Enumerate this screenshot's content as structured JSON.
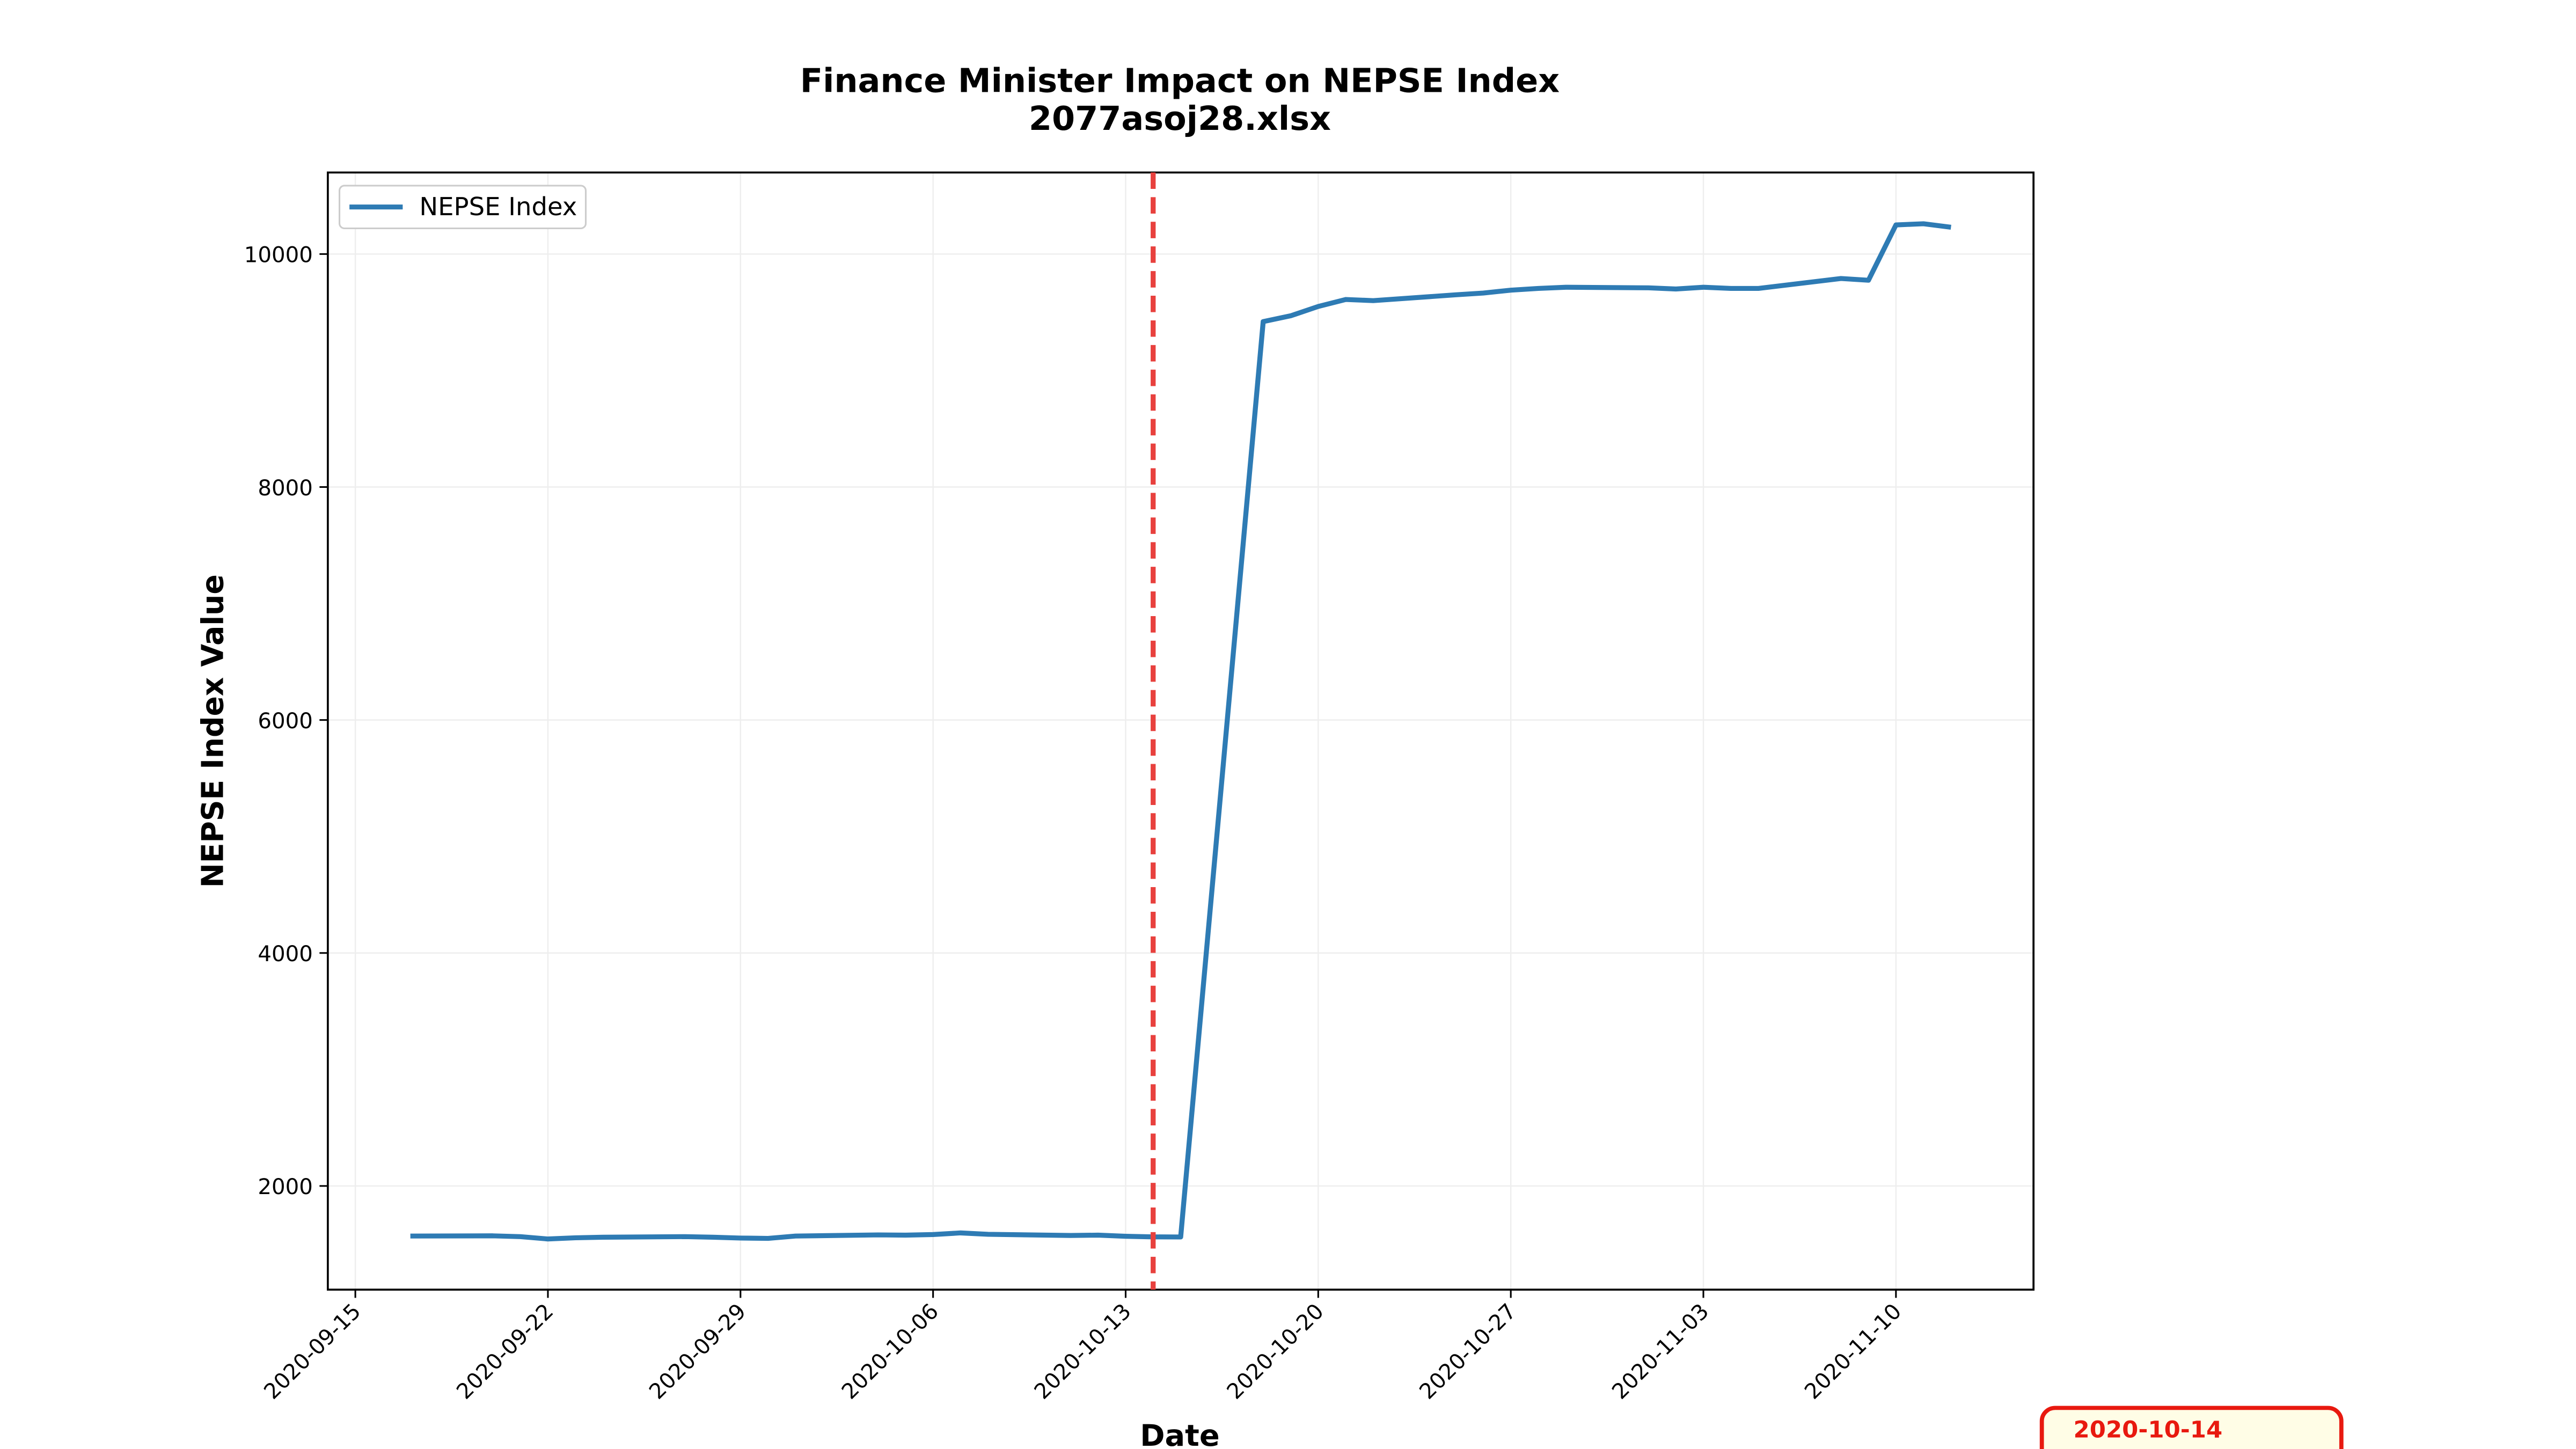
{
  "chart_data": {
    "type": "line",
    "title": "Finance Minister Impact on NEPSE Index",
    "subtitle": "2077asoj28.xlsx",
    "x_label": "Date",
    "y_label": "NEPSE Index Value",
    "x": [
      "2020-09-17",
      "2020-09-20",
      "2020-09-21",
      "2020-09-22",
      "2020-09-23",
      "2020-09-24",
      "2020-09-27",
      "2020-09-28",
      "2020-09-29",
      "2020-09-30",
      "2020-10-01",
      "2020-10-04",
      "2020-10-05",
      "2020-10-06",
      "2020-10-07",
      "2020-10-08",
      "2020-10-11",
      "2020-10-12",
      "2020-10-13",
      "2020-10-14",
      "2020-10-15",
      "2020-10-18",
      "2020-10-19",
      "2020-10-20",
      "2020-10-21",
      "2020-10-22",
      "2020-10-25",
      "2020-10-26",
      "2020-10-27",
      "2020-10-28",
      "2020-10-29",
      "2020-11-01",
      "2020-11-02",
      "2020-11-03",
      "2020-11-04",
      "2020-11-05",
      "2020-11-08",
      "2020-11-09",
      "2020-11-10",
      "2020-11-11",
      "2020-11-12"
    ],
    "series": [
      {
        "name": "NEPSE Index",
        "color": "#2e7bb4",
        "values": [
          1570,
          1572,
          1565,
          1545,
          1555,
          1560,
          1565,
          1560,
          1553,
          1550,
          1570,
          1580,
          1578,
          1583,
          1597,
          1585,
          1575,
          1578,
          1568,
          1563,
          1562,
          9420,
          9470,
          9550,
          9610,
          9600,
          9650,
          9665,
          9690,
          9705,
          9715,
          9710,
          9700,
          9715,
          9705,
          9705,
          9790,
          9775,
          10250,
          10260,
          10230
        ]
      }
    ],
    "event_date": "2020-10-14",
    "event_color": "#e8413e",
    "xlim": [
      "2020-09-14",
      "2020-11-15"
    ],
    "xticks": [
      "2020-09-15",
      "2020-09-22",
      "2020-09-29",
      "2020-10-06",
      "2020-10-13",
      "2020-10-20",
      "2020-10-27",
      "2020-11-03",
      "2020-11-10"
    ],
    "ylim": [
      1110,
      10700
    ],
    "yticks": [
      2000,
      4000,
      6000,
      8000,
      10000
    ],
    "grid": true,
    "legend": "upper-left",
    "annotation": "2020-10-14"
  }
}
